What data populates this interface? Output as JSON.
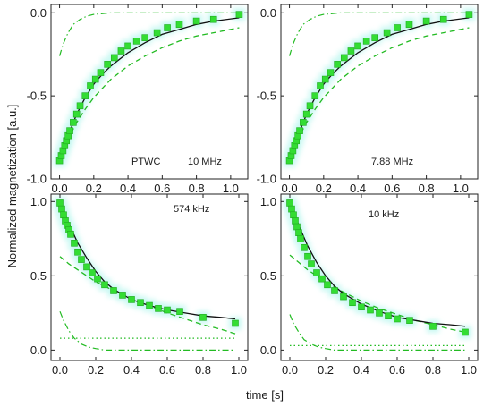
{
  "figure": {
    "ylabel": "Normalized magnetization [a.u.]",
    "xlabel": "time [s]"
  },
  "colors": {
    "markers": "#33dd33",
    "fit": "#111111",
    "components": "#22bb22",
    "highlight": "#bff7f0"
  },
  "chart_data": [
    {
      "type": "scatter",
      "panel": "top-left",
      "annotations": [
        "PTWC",
        "10 MHz"
      ],
      "xlim": [
        -0.05,
        1.1
      ],
      "ylim": [
        -1.0,
        0.05
      ],
      "xticks": [
        "0.0",
        "0.2",
        "0.4",
        "0.6",
        "0.8",
        "1.0"
      ],
      "yticks": [
        "-1.0",
        "-0.5",
        "0.0"
      ],
      "series": [
        {
          "kind": "markers",
          "x": [
            0.0,
            0.01,
            0.02,
            0.03,
            0.04,
            0.05,
            0.06,
            0.08,
            0.1,
            0.12,
            0.15,
            0.18,
            0.21,
            0.24,
            0.28,
            0.32,
            0.36,
            0.4,
            0.45,
            0.5,
            0.57,
            0.63,
            0.7,
            0.8,
            0.9,
            1.05
          ],
          "y": [
            -0.89,
            -0.86,
            -0.83,
            -0.8,
            -0.77,
            -0.74,
            -0.71,
            -0.66,
            -0.61,
            -0.56,
            -0.5,
            -0.44,
            -0.4,
            -0.36,
            -0.31,
            -0.27,
            -0.23,
            -0.2,
            -0.17,
            -0.15,
            -0.12,
            -0.09,
            -0.07,
            -0.05,
            -0.04,
            -0.01
          ]
        },
        {
          "kind": "fit",
          "x": [
            0.0,
            0.05,
            0.1,
            0.15,
            0.2,
            0.25,
            0.3,
            0.4,
            0.5,
            0.6,
            0.7,
            0.8,
            0.9,
            1.05
          ],
          "y": [
            -0.9,
            -0.74,
            -0.61,
            -0.51,
            -0.43,
            -0.37,
            -0.32,
            -0.24,
            -0.18,
            -0.13,
            -0.1,
            -0.07,
            -0.05,
            -0.03
          ]
        },
        {
          "kind": "component-dashed",
          "x": [
            0.0,
            0.05,
            0.1,
            0.15,
            0.2,
            0.3,
            0.4,
            0.5,
            0.6,
            0.7,
            0.8,
            0.9,
            1.05
          ],
          "y": [
            -0.87,
            -0.76,
            -0.66,
            -0.58,
            -0.51,
            -0.4,
            -0.32,
            -0.26,
            -0.21,
            -0.17,
            -0.14,
            -0.12,
            -0.09
          ]
        },
        {
          "kind": "component-dashdot",
          "x": [
            0.0,
            0.02,
            0.05,
            0.08,
            0.12,
            0.16,
            0.2,
            0.3,
            0.4,
            0.6,
            0.8,
            1.05
          ],
          "y": [
            -0.26,
            -0.19,
            -0.12,
            -0.07,
            -0.04,
            -0.02,
            -0.01,
            0.0,
            0.0,
            0.0,
            0.0,
            0.0
          ]
        }
      ]
    },
    {
      "type": "scatter",
      "panel": "top-right",
      "annotations": [
        "7.88 MHz"
      ],
      "xlim": [
        -0.05,
        1.1
      ],
      "ylim": [
        -1.0,
        0.05
      ],
      "xticks": [
        "0.0",
        "0.2",
        "0.4",
        "0.6",
        "0.8",
        "1.0"
      ],
      "yticks": [
        "-1.0",
        "-0.5",
        "0.0"
      ],
      "series": [
        {
          "kind": "markers",
          "x": [
            0.0,
            0.01,
            0.02,
            0.03,
            0.04,
            0.05,
            0.06,
            0.08,
            0.1,
            0.12,
            0.15,
            0.18,
            0.21,
            0.24,
            0.28,
            0.32,
            0.36,
            0.4,
            0.45,
            0.5,
            0.57,
            0.63,
            0.7,
            0.8,
            0.9,
            1.05
          ],
          "y": [
            -0.89,
            -0.86,
            -0.83,
            -0.8,
            -0.77,
            -0.74,
            -0.71,
            -0.66,
            -0.61,
            -0.56,
            -0.5,
            -0.44,
            -0.4,
            -0.36,
            -0.31,
            -0.27,
            -0.23,
            -0.2,
            -0.17,
            -0.15,
            -0.12,
            -0.09,
            -0.07,
            -0.05,
            -0.04,
            -0.01
          ]
        },
        {
          "kind": "fit",
          "x": [
            0.0,
            0.05,
            0.1,
            0.15,
            0.2,
            0.25,
            0.3,
            0.4,
            0.5,
            0.6,
            0.7,
            0.8,
            0.9,
            1.05
          ],
          "y": [
            -0.9,
            -0.74,
            -0.61,
            -0.51,
            -0.43,
            -0.37,
            -0.32,
            -0.24,
            -0.18,
            -0.13,
            -0.1,
            -0.07,
            -0.05,
            -0.03
          ]
        },
        {
          "kind": "component-dashed",
          "x": [
            0.0,
            0.05,
            0.1,
            0.15,
            0.2,
            0.3,
            0.4,
            0.5,
            0.6,
            0.7,
            0.8,
            0.9,
            1.05
          ],
          "y": [
            -0.87,
            -0.76,
            -0.66,
            -0.58,
            -0.51,
            -0.4,
            -0.32,
            -0.26,
            -0.21,
            -0.17,
            -0.14,
            -0.12,
            -0.09
          ]
        },
        {
          "kind": "component-dashdot",
          "x": [
            0.0,
            0.02,
            0.05,
            0.08,
            0.12,
            0.16,
            0.2,
            0.3,
            0.4,
            0.6,
            0.8,
            1.05
          ],
          "y": [
            -0.26,
            -0.19,
            -0.12,
            -0.07,
            -0.04,
            -0.02,
            -0.01,
            0.0,
            0.0,
            0.0,
            0.0,
            0.0
          ]
        }
      ]
    },
    {
      "type": "scatter",
      "panel": "bottom-left",
      "annotations": [
        "574 kHz"
      ],
      "xlim": [
        -0.05,
        1.05
      ],
      "ylim": [
        -0.07,
        1.05
      ],
      "xticks": [
        "0.0",
        "0.2",
        "0.4",
        "0.6",
        "0.8",
        "1.0"
      ],
      "yticks": [
        "0.0",
        "0.5",
        "1.0"
      ],
      "series": [
        {
          "kind": "markers",
          "x": [
            0.0,
            0.01,
            0.02,
            0.03,
            0.04,
            0.05,
            0.06,
            0.08,
            0.1,
            0.12,
            0.15,
            0.18,
            0.21,
            0.25,
            0.3,
            0.35,
            0.4,
            0.45,
            0.5,
            0.55,
            0.6,
            0.67,
            0.8,
            0.98
          ],
          "y": [
            0.99,
            0.95,
            0.91,
            0.87,
            0.84,
            0.81,
            0.78,
            0.72,
            0.66,
            0.61,
            0.56,
            0.52,
            0.48,
            0.44,
            0.4,
            0.37,
            0.34,
            0.32,
            0.3,
            0.28,
            0.27,
            0.26,
            0.22,
            0.18
          ]
        },
        {
          "kind": "fit",
          "x": [
            0.0,
            0.05,
            0.1,
            0.15,
            0.2,
            0.25,
            0.3,
            0.4,
            0.5,
            0.6,
            0.7,
            0.8,
            0.9,
            0.98
          ],
          "y": [
            1.0,
            0.85,
            0.72,
            0.62,
            0.53,
            0.46,
            0.41,
            0.34,
            0.3,
            0.27,
            0.25,
            0.23,
            0.22,
            0.21
          ]
        },
        {
          "kind": "component-dashed",
          "x": [
            0.0,
            0.05,
            0.1,
            0.15,
            0.2,
            0.3,
            0.4,
            0.5,
            0.6,
            0.7,
            0.8,
            0.9,
            0.98
          ],
          "y": [
            0.63,
            0.58,
            0.54,
            0.5,
            0.46,
            0.4,
            0.35,
            0.3,
            0.25,
            0.21,
            0.17,
            0.14,
            0.11
          ]
        },
        {
          "kind": "component-dashdot",
          "x": [
            0.0,
            0.02,
            0.05,
            0.08,
            0.12,
            0.16,
            0.2,
            0.25,
            0.3,
            0.4,
            0.6,
            0.8,
            0.98
          ],
          "y": [
            0.26,
            0.2,
            0.13,
            0.08,
            0.04,
            0.02,
            0.01,
            0.0,
            0.0,
            0.0,
            0.0,
            0.0,
            0.0
          ]
        },
        {
          "kind": "component-dotted",
          "x": [
            0.0,
            0.98
          ],
          "y": [
            0.08,
            0.08
          ]
        }
      ]
    },
    {
      "type": "scatter",
      "panel": "bottom-right",
      "annotations": [
        "10 kHz"
      ],
      "xlim": [
        -0.05,
        1.05
      ],
      "ylim": [
        -0.07,
        1.05
      ],
      "xticks": [
        "0.0",
        "0.2",
        "0.4",
        "0.6",
        "0.8",
        "1.0"
      ],
      "yticks": [
        "0.0",
        "0.5",
        "1.0"
      ],
      "series": [
        {
          "kind": "markers",
          "x": [
            0.0,
            0.01,
            0.02,
            0.03,
            0.04,
            0.05,
            0.06,
            0.08,
            0.1,
            0.12,
            0.15,
            0.18,
            0.21,
            0.25,
            0.3,
            0.35,
            0.4,
            0.45,
            0.5,
            0.55,
            0.6,
            0.67,
            0.8,
            0.98
          ],
          "y": [
            0.99,
            0.95,
            0.91,
            0.87,
            0.83,
            0.79,
            0.75,
            0.69,
            0.63,
            0.58,
            0.52,
            0.48,
            0.44,
            0.4,
            0.36,
            0.32,
            0.29,
            0.27,
            0.25,
            0.23,
            0.21,
            0.2,
            0.16,
            0.12
          ]
        },
        {
          "kind": "fit",
          "x": [
            0.0,
            0.05,
            0.1,
            0.15,
            0.2,
            0.25,
            0.3,
            0.4,
            0.5,
            0.6,
            0.7,
            0.8,
            0.9,
            0.98
          ],
          "y": [
            1.0,
            0.84,
            0.7,
            0.59,
            0.5,
            0.43,
            0.38,
            0.31,
            0.26,
            0.22,
            0.2,
            0.18,
            0.17,
            0.16
          ]
        },
        {
          "kind": "component-dashed",
          "x": [
            0.0,
            0.05,
            0.1,
            0.15,
            0.2,
            0.3,
            0.4,
            0.5,
            0.6,
            0.7,
            0.8,
            0.9,
            0.98
          ],
          "y": [
            0.64,
            0.59,
            0.54,
            0.5,
            0.46,
            0.39,
            0.33,
            0.28,
            0.24,
            0.2,
            0.17,
            0.14,
            0.12
          ]
        },
        {
          "kind": "component-dashdot",
          "x": [
            0.0,
            0.02,
            0.05,
            0.08,
            0.12,
            0.16,
            0.2,
            0.25,
            0.3,
            0.4,
            0.6,
            0.8,
            0.98
          ],
          "y": [
            0.24,
            0.18,
            0.12,
            0.07,
            0.04,
            0.02,
            0.01,
            0.0,
            0.0,
            0.0,
            0.0,
            0.0,
            0.0
          ]
        },
        {
          "kind": "component-dotted",
          "x": [
            0.0,
            0.98
          ],
          "y": [
            0.03,
            0.03
          ]
        }
      ]
    }
  ]
}
